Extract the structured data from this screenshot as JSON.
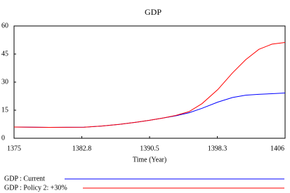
{
  "chart_data": {
    "type": "line",
    "title": "GDP",
    "x_label": "Time (Year)",
    "x": [
      1375,
      1379,
      1383,
      1385,
      1387,
      1389,
      1390.5,
      1392,
      1393.5,
      1395,
      1396.5,
      1398.3,
      1400,
      1401.5,
      1403,
      1404.5,
      1406
    ],
    "series": [
      {
        "name": "GDP : Current",
        "color": "#0000ff",
        "values": [
          6,
          5.8,
          5.9,
          6.5,
          7.4,
          8.6,
          9.6,
          10.8,
          12,
          13.6,
          16,
          19.3,
          21.8,
          23,
          23.5,
          23.8,
          24.2
        ]
      },
      {
        "name": "GDP : Policy 2: +30%",
        "color": "#ff0000",
        "values": [
          6,
          5.8,
          5.9,
          6.5,
          7.4,
          8.6,
          9.6,
          10.8,
          12.2,
          14.2,
          18.5,
          26,
          35,
          42,
          47.5,
          50.3,
          51.2
        ]
      }
    ],
    "xlim": [
      1375,
      1406
    ],
    "xticks": [
      1375,
      {
        "value": 1382.75,
        "label": "1382.8"
      },
      1390.5,
      {
        "value": 1398.25,
        "label": "1398.3"
      },
      1406
    ],
    "ylim": [
      0,
      60
    ],
    "yticks": [
      0,
      15,
      30,
      45,
      60
    ]
  }
}
